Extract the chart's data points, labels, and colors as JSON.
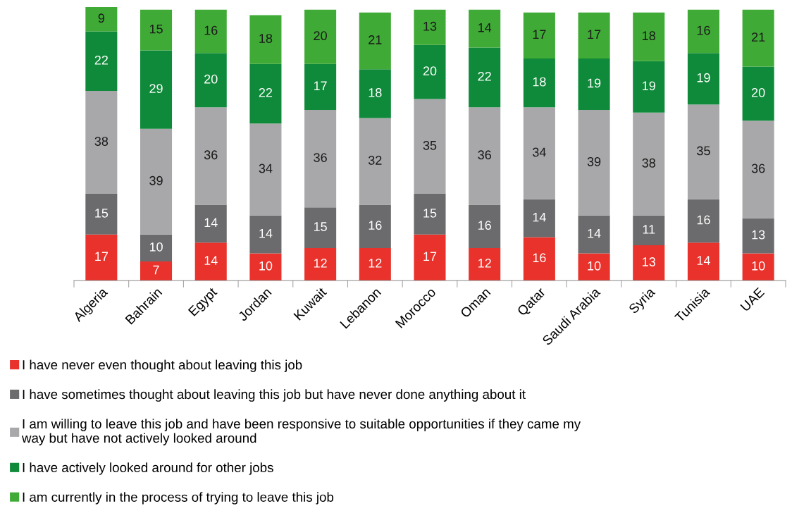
{
  "chart_data": {
    "type": "bar",
    "stacked": true,
    "data_labels": true,
    "grid": false,
    "legend": "bottom",
    "categories": [
      "Algeria",
      "Bahrain",
      "Egypt",
      "Jordan",
      "Kuwait",
      "Lebanon",
      "Morocco",
      "Oman",
      "Qatar",
      "Saudi Arabia",
      "Syria",
      "Tunisia",
      "UAE"
    ],
    "series": [
      {
        "name": "I have never even thought about leaving this job",
        "color": "#e8322b",
        "values": [
          17,
          7,
          14,
          10,
          12,
          12,
          17,
          12,
          16,
          10,
          13,
          14,
          10
        ]
      },
      {
        "name": "I have sometimes thought about leaving this job but have never done anything about it",
        "color": "#6b6b6d",
        "values": [
          15,
          10,
          14,
          14,
          15,
          16,
          15,
          16,
          14,
          14,
          11,
          16,
          13
        ]
      },
      {
        "name": "I am willing to leave this job and have been responsive to suitable opportunities if they came my\nway but have not actively looked around",
        "color": "#a8a8aa",
        "values": [
          38,
          39,
          36,
          34,
          36,
          32,
          35,
          36,
          34,
          39,
          38,
          35,
          36
        ]
      },
      {
        "name": "I have actively looked around for other jobs",
        "color": "#0f8a3a",
        "values": [
          22,
          29,
          20,
          22,
          17,
          18,
          20,
          22,
          18,
          19,
          19,
          19,
          20
        ]
      },
      {
        "name": "I am currently in the process of trying to leave this job",
        "color": "#40aa36",
        "values": [
          9,
          15,
          16,
          18,
          20,
          21,
          13,
          14,
          17,
          17,
          18,
          16,
          21
        ]
      }
    ]
  }
}
